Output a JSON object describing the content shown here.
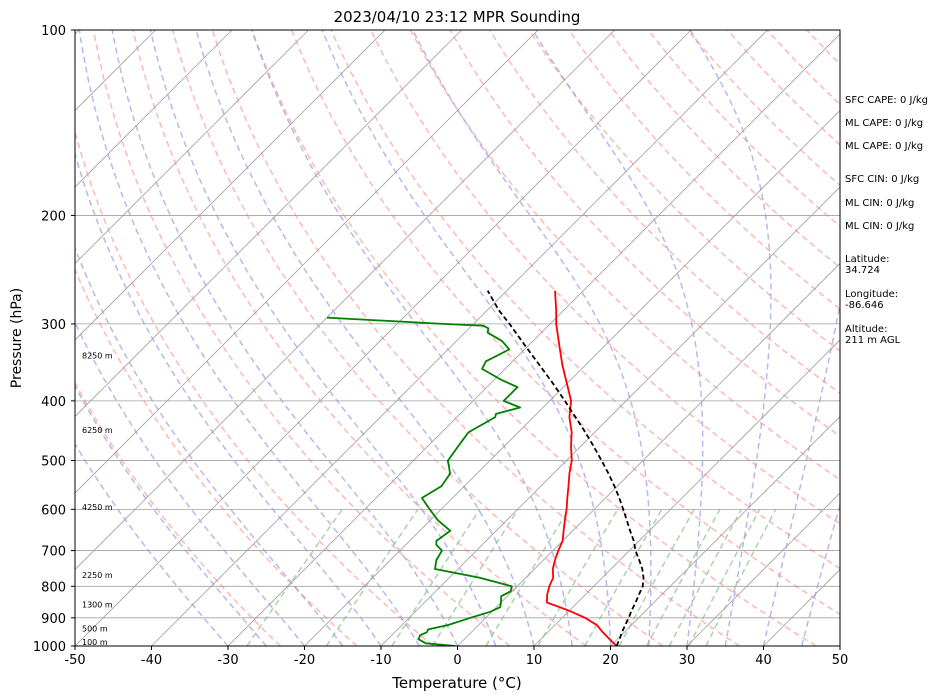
{
  "chart_data": {
    "type": "line",
    "title": "2023/04/10 23:12 MPR Sounding",
    "xlabel": "Temperature (°C)",
    "ylabel": "Pressure (hPa)",
    "xlim": [
      -50,
      50
    ],
    "ylim": [
      1000,
      100
    ],
    "y_scale": "log",
    "skew": "skew-T log-P",
    "x_ticks": [
      -50,
      -40,
      -30,
      -20,
      -10,
      0,
      10,
      20,
      30,
      40,
      50
    ],
    "y_ticks": [
      1000,
      900,
      800,
      700,
      600,
      500,
      400,
      300,
      200,
      100
    ],
    "grid": true,
    "series": [
      {
        "color": "#ff0000",
        "points": [
          {
            "p": 1000,
            "t": 20.8
          },
          {
            "p": 975,
            "t": 19.0
          },
          {
            "p": 950,
            "t": 17.2
          },
          {
            "p": 925,
            "t": 15.5
          },
          {
            "p": 900,
            "t": 13.0
          },
          {
            "p": 875,
            "t": 9.8
          },
          {
            "p": 850,
            "t": 6.0
          },
          {
            "p": 825,
            "t": 5.0
          },
          {
            "p": 800,
            "t": 4.2
          },
          {
            "p": 775,
            "t": 3.6
          },
          {
            "p": 750,
            "t": 2.4
          },
          {
            "p": 725,
            "t": 1.5
          },
          {
            "p": 700,
            "t": 0.7
          },
          {
            "p": 675,
            "t": 0.0
          },
          {
            "p": 650,
            "t": -1.2
          },
          {
            "p": 625,
            "t": -2.4
          },
          {
            "p": 600,
            "t": -3.6
          },
          {
            "p": 575,
            "t": -5.0
          },
          {
            "p": 550,
            "t": -6.4
          },
          {
            "p": 525,
            "t": -7.9
          },
          {
            "p": 500,
            "t": -9.3
          },
          {
            "p": 475,
            "t": -11.2
          },
          {
            "p": 450,
            "t": -13.0
          },
          {
            "p": 425,
            "t": -15.3
          },
          {
            "p": 400,
            "t": -17.2
          },
          {
            "p": 375,
            "t": -20.0
          },
          {
            "p": 350,
            "t": -23.0
          },
          {
            "p": 325,
            "t": -26.0
          },
          {
            "p": 300,
            "t": -29.2
          },
          {
            "p": 285,
            "t": -31.0
          },
          {
            "p": 265,
            "t": -33.7
          }
        ]
      },
      {
        "color": "#008000",
        "points": [
          {
            "p": 1000,
            "t": -0.3
          },
          {
            "p": 990,
            "t": -4.5
          },
          {
            "p": 975,
            "t": -6.0
          },
          {
            "p": 960,
            "t": -6.3
          },
          {
            "p": 950,
            "t": -5.8
          },
          {
            "p": 940,
            "t": -6.0
          },
          {
            "p": 925,
            "t": -4.0
          },
          {
            "p": 900,
            "t": -2.0
          },
          {
            "p": 880,
            "t": -0.2
          },
          {
            "p": 865,
            "t": 0.5
          },
          {
            "p": 850,
            "t": 0.0
          },
          {
            "p": 830,
            "t": -0.8
          },
          {
            "p": 815,
            "t": -0.2
          },
          {
            "p": 800,
            "t": -0.7
          },
          {
            "p": 775,
            "t": -6.0
          },
          {
            "p": 750,
            "t": -13.0
          },
          {
            "p": 725,
            "t": -14.0
          },
          {
            "p": 700,
            "t": -14.5
          },
          {
            "p": 685,
            "t": -16.0
          },
          {
            "p": 675,
            "t": -16.5
          },
          {
            "p": 650,
            "t": -16.0
          },
          {
            "p": 625,
            "t": -19.0
          },
          {
            "p": 600,
            "t": -21.5
          },
          {
            "p": 575,
            "t": -24.0
          },
          {
            "p": 550,
            "t": -23.0
          },
          {
            "p": 525,
            "t": -23.5
          },
          {
            "p": 500,
            "t": -25.5
          },
          {
            "p": 475,
            "t": -26.0
          },
          {
            "p": 450,
            "t": -26.5
          },
          {
            "p": 425,
            "t": -25.0
          },
          {
            "p": 420,
            "t": -25.3
          },
          {
            "p": 410,
            "t": -23.0
          },
          {
            "p": 400,
            "t": -26.0
          },
          {
            "p": 380,
            "t": -26.0
          },
          {
            "p": 370,
            "t": -29.0
          },
          {
            "p": 355,
            "t": -33.0
          },
          {
            "p": 345,
            "t": -33.5
          },
          {
            "p": 330,
            "t": -32.0
          },
          {
            "p": 320,
            "t": -34.0
          },
          {
            "p": 310,
            "t": -37.0
          },
          {
            "p": 305,
            "t": -37.5
          },
          {
            "p": 302,
            "t": -38.5
          },
          {
            "p": 300,
            "t": -44.0
          },
          {
            "p": 293,
            "t": -60.0
          }
        ]
      },
      {
        "color": "#000000",
        "style": "dashed",
        "points": [
          {
            "p": 1000,
            "t": 20.8
          },
          {
            "p": 975,
            "t": 20.3
          },
          {
            "p": 950,
            "t": 19.7
          },
          {
            "p": 925,
            "t": 19.2
          },
          {
            "p": 900,
            "t": 18.7
          },
          {
            "p": 875,
            "t": 18.1
          },
          {
            "p": 850,
            "t": 17.6
          },
          {
            "p": 825,
            "t": 17.0
          },
          {
            "p": 800,
            "t": 16.4
          },
          {
            "p": 775,
            "t": 15.4
          },
          {
            "p": 750,
            "t": 14.1
          },
          {
            "p": 725,
            "t": 12.5
          },
          {
            "p": 700,
            "t": 10.8
          },
          {
            "p": 675,
            "t": 9.3
          },
          {
            "p": 650,
            "t": 7.5
          },
          {
            "p": 625,
            "t": 5.7
          },
          {
            "p": 600,
            "t": 3.8
          },
          {
            "p": 575,
            "t": 1.8
          },
          {
            "p": 550,
            "t": -0.4
          },
          {
            "p": 525,
            "t": -2.8
          },
          {
            "p": 500,
            "t": -5.4
          },
          {
            "p": 475,
            "t": -8.2
          },
          {
            "p": 450,
            "t": -11.2
          },
          {
            "p": 425,
            "t": -14.5
          },
          {
            "p": 400,
            "t": -18.0
          },
          {
            "p": 375,
            "t": -21.8
          },
          {
            "p": 350,
            "t": -26.0
          },
          {
            "p": 325,
            "t": -30.5
          },
          {
            "p": 300,
            "t": -35.3
          },
          {
            "p": 285,
            "t": -38.5
          },
          {
            "p": 265,
            "t": -42.5
          }
        ]
      }
    ],
    "height_labels": [
      {
        "p": 1000,
        "label": "100 m"
      },
      {
        "p": 950,
        "label": "500 m"
      },
      {
        "p": 870,
        "label": "1300 m"
      },
      {
        "p": 778,
        "label": "2250 m"
      },
      {
        "p": 604,
        "label": "4250 m"
      },
      {
        "p": 453,
        "label": "6250 m"
      },
      {
        "p": 343,
        "label": "8250 m"
      }
    ],
    "annotations": [
      {
        "line1": "SFC CAPE: 0 J/kg"
      },
      {
        "line1": "ML CAPE: 0 J/kg"
      },
      {
        "line1": "ML CAPE: 0 J/kg"
      },
      {
        "line1": "SFC CIN: 0 J/kg"
      },
      {
        "line1": "ML CIN: 0 J/kg"
      },
      {
        "line1": "ML CIN: 0 J/kg"
      },
      {
        "line1": "Latitude:",
        "line2": "34.724"
      },
      {
        "line1": "Longitude:",
        "line2": "-86.646"
      },
      {
        "line1": "Altitude:",
        "line2": "211 m AGL"
      }
    ],
    "colors": {
      "temperature": "#ff0000",
      "dewpoint": "#008000",
      "parcel": "#000000",
      "dry_adiabat": "#ff9999",
      "moist_adiabat": "#9999ee",
      "mixing_ratio": "#88c088",
      "isotherm": "#a0a0a0",
      "isobar": "#a0a0a0"
    }
  }
}
